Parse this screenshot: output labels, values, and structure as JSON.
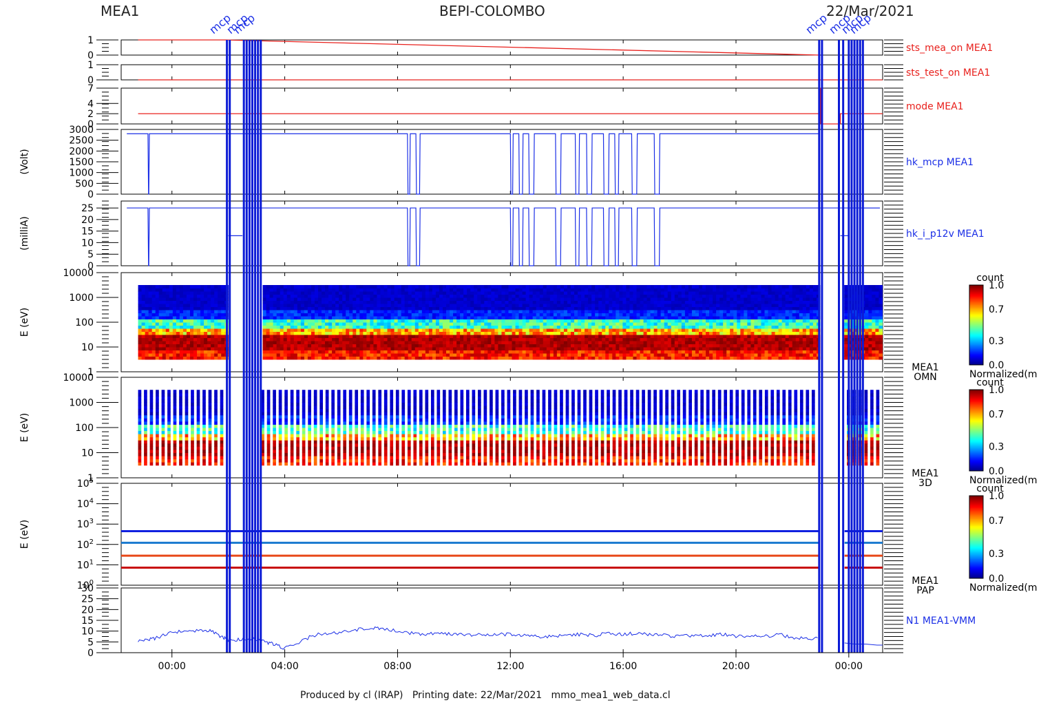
{
  "header": {
    "left": "MEA1",
    "center": "BEPI-COLOMBO",
    "right": "22/Mar/2021"
  },
  "footer": "Produced by cl (IRAP)   Printing date: 22/Mar/2021   mmo_mea1_web_data.cl",
  "event_labels": [
    "mcp",
    "mcp",
    "mcp",
    "mcp",
    "mcp",
    "mcp",
    "mcp"
  ],
  "colors": {
    "red": "#e8201c",
    "blue": "#1a2ee6",
    "dark_blue": "#0b1bd6"
  },
  "chart_data": [
    {
      "type": "line",
      "panel": "sts_mea_on",
      "label": "sts_mea_on MEA1",
      "label_color": "#e8201c",
      "yticks": [
        "0",
        "1"
      ],
      "ylim": [
        0,
        1
      ],
      "series": [
        {
          "x": [
            -1.2,
            1.9,
            1.9,
            22.95
          ],
          "y": [
            1,
            1,
            1,
            0
          ]
        }
      ]
    },
    {
      "type": "line",
      "panel": "sts_test_on",
      "label": "sts_test_on MEA1",
      "label_color": "#e8201c",
      "yticks": [
        "0",
        "1"
      ],
      "ylim": [
        0,
        1
      ],
      "series": [
        {
          "x": [
            -1.2,
            25.2
          ],
          "y": [
            0,
            0
          ]
        }
      ]
    },
    {
      "type": "line",
      "panel": "mode",
      "label": "mode MEA1",
      "label_color": "#e8201c",
      "yticks": [
        "0",
        "2",
        "4",
        "7"
      ],
      "ylim": [
        0,
        7
      ],
      "series": [
        {
          "x": [
            -1.2,
            22.95,
            22.95,
            23.0,
            23.0,
            23.7,
            23.7,
            25.2
          ],
          "y": [
            2,
            2,
            7,
            7,
            0,
            0,
            2,
            2
          ]
        }
      ]
    },
    {
      "type": "line",
      "panel": "hk_mcp",
      "label": "hk_mcp MEA1",
      "ylabel": "(Volt)",
      "label_color": "#1a2ee6",
      "yticks": [
        "0",
        "500",
        "1000",
        "1500",
        "2000",
        "2500",
        "3000"
      ],
      "ylim": [
        0,
        3000
      ],
      "high": 2800,
      "drops": [
        [
          -0.85,
          -0.8
        ],
        [
          8.35,
          8.45
        ],
        [
          8.65,
          8.8
        ],
        [
          12.0,
          12.1
        ],
        [
          12.3,
          12.45
        ],
        [
          12.65,
          12.85
        ],
        [
          13.6,
          13.8
        ],
        [
          14.3,
          14.45
        ],
        [
          14.7,
          14.9
        ],
        [
          15.3,
          15.5
        ],
        [
          15.7,
          15.85
        ],
        [
          16.3,
          16.5
        ],
        [
          17.1,
          17.3
        ]
      ],
      "gaps": [
        [
          1.95,
          3.2
        ],
        [
          22.95,
          25.2
        ]
      ]
    },
    {
      "type": "line",
      "panel": "hk_i_p12v",
      "label": "hk_i_p12v MEA1",
      "ylabel": "(milliA)",
      "label_color": "#1a2ee6",
      "yticks": [
        "0",
        "5",
        "10",
        "15",
        "20",
        "25"
      ],
      "ylim": [
        0,
        28
      ],
      "high": 25,
      "segment": [
        [
          2.0,
          2.5,
          13
        ]
      ],
      "drops": [
        [
          -0.85,
          -0.8
        ],
        [
          8.35,
          8.45
        ],
        [
          8.65,
          8.8
        ],
        [
          12.0,
          12.1
        ],
        [
          12.3,
          12.45
        ],
        [
          12.65,
          12.85
        ],
        [
          13.6,
          13.8
        ],
        [
          14.3,
          14.45
        ],
        [
          14.7,
          14.9
        ],
        [
          15.3,
          15.5
        ],
        [
          15.7,
          15.85
        ],
        [
          16.3,
          16.5
        ],
        [
          17.1,
          17.3
        ]
      ]
    },
    {
      "type": "heatmap",
      "panel": "OMN",
      "label": "MEA1",
      "sublabel": "OMN",
      "ylabel": "E (eV)",
      "yticks": [
        "1",
        "10",
        "100",
        "1000",
        "10000"
      ],
      "ylim_log": [
        0,
        4
      ],
      "energy_range_log": [
        0.5,
        3.5
      ],
      "gaps": [
        [
          1.95,
          3.2
        ],
        [
          22.95,
          23.85
        ]
      ],
      "colorbar": {
        "title": "count",
        "ticks": [
          "0.0",
          "0.3",
          "0.7",
          "1.0"
        ],
        "label": "Normalized(m"
      }
    },
    {
      "type": "heatmap",
      "panel": "3D",
      "label": "MEA1",
      "sublabel": "3D",
      "ylabel": "E (eV)",
      "yticks": [
        "1",
        "10",
        "100",
        "1000",
        "10000"
      ],
      "ylim_log": [
        0,
        4
      ],
      "energy_range_log": [
        0.5,
        3.5
      ],
      "striped": true,
      "gaps": [
        [
          1.95,
          3.2
        ],
        [
          22.95,
          23.85
        ]
      ],
      "colorbar": {
        "title": "count",
        "ticks": [
          "0.0",
          "0.3",
          "0.7",
          "1.0"
        ],
        "label": "Normalized(m"
      }
    },
    {
      "type": "heatmap",
      "panel": "PAP",
      "label": "MEA1",
      "sublabel": "PAP",
      "ylabel": "E (eV)",
      "yticks": [
        "10",
        "10",
        "10",
        "10",
        "10",
        "10"
      ],
      "ytick_exponents": [
        "0",
        "1",
        "2",
        "3",
        "4",
        "5"
      ],
      "ylim_log": [
        0,
        5
      ],
      "lines_log": [
        2.65,
        2.08,
        1.45,
        0.86
      ],
      "line_colors": [
        "#1020e0",
        "#1a7ad0",
        "#e84818",
        "#c80808"
      ],
      "gaps": [
        [
          22.95,
          23.85
        ]
      ],
      "colorbar": {
        "title": "count",
        "ticks": [
          "0.0",
          "0.3",
          "0.7",
          "1.0"
        ],
        "label": "Normalized(m"
      }
    },
    {
      "type": "line",
      "panel": "N1",
      "label": "N1 MEA1-VMM",
      "label_color": "#1a2ee6",
      "yticks": [
        "0",
        "5",
        "10",
        "15",
        "20",
        "25",
        "30"
      ],
      "ylim": [
        0,
        30
      ],
      "x": [
        -1.2,
        -0.8,
        -0.5,
        0.0,
        0.5,
        1.0,
        1.4,
        1.8,
        2.0,
        2.4,
        2.9,
        3.3,
        3.6,
        4.0,
        4.5,
        5.0,
        5.5,
        6.0,
        6.5,
        7.0,
        7.4,
        8.0,
        8.5,
        9.0,
        9.5,
        10.0,
        10.5,
        11.0,
        11.5,
        12.0,
        12.5,
        13.0,
        13.5,
        14.0,
        14.5,
        15.0,
        15.5,
        16.0,
        16.5,
        17.0,
        17.5,
        18.0,
        18.5,
        19.0,
        19.5,
        20.0,
        20.5,
        21.0,
        21.5,
        22.0,
        22.5,
        22.95
      ],
      "y": [
        5.5,
        6,
        7,
        9.5,
        10,
        10.5,
        10,
        7,
        6,
        6,
        6.5,
        5,
        4,
        2,
        4.5,
        8,
        9,
        9.5,
        10.5,
        11.5,
        11,
        10,
        9,
        8.5,
        9,
        8.5,
        8,
        8.5,
        8.5,
        8.5,
        8,
        7.5,
        7.5,
        8,
        8.5,
        8,
        9,
        8.5,
        9,
        8.5,
        8,
        7.5,
        8,
        8,
        8.5,
        7.5,
        8,
        7.5,
        8.5,
        7,
        6.5,
        6.5
      ],
      "x2": [
        23.85,
        24.2,
        24.6,
        25.0,
        25.2
      ],
      "y2": [
        4.5,
        4,
        4,
        3.5,
        3.5
      ]
    }
  ],
  "time_axis": {
    "xlim_hours": [
      -1.8,
      25.2
    ],
    "tick_hours": [
      0,
      4,
      8,
      12,
      16,
      20,
      24
    ],
    "tick_labels": [
      "00:00",
      "04:00",
      "08:00",
      "12:00",
      "16:00",
      "20:00",
      "00:00"
    ],
    "vertical_markers_hours": [
      1.95,
      2.05,
      2.55,
      2.65,
      2.75,
      2.85,
      2.95,
      3.05,
      3.15,
      22.95,
      23.05,
      23.65,
      23.8,
      24.0,
      24.1,
      24.2,
      24.3,
      24.4,
      24.5
    ]
  }
}
